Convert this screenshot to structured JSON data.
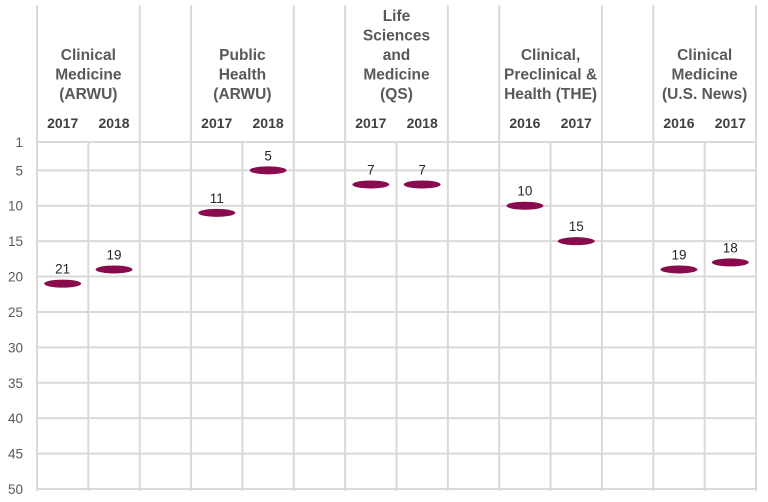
{
  "chart_data": {
    "type": "scatter",
    "marker_color": "#8a0a4e",
    "grid_color": "#d9d9d9",
    "y_axis": {
      "reversed": true,
      "ylim": [
        1,
        50
      ],
      "ticks": [
        1,
        5,
        10,
        15,
        20,
        25,
        30,
        35,
        40,
        45,
        50
      ]
    },
    "groups": [
      {
        "title_lines": [
          "Clinical",
          "Medicine",
          "(ARWU)"
        ],
        "points": [
          {
            "year": "2017",
            "rank": 21
          },
          {
            "year": "2018",
            "rank": 19
          }
        ]
      },
      {
        "title_lines": [
          "Public",
          "Health",
          "(ARWU)"
        ],
        "points": [
          {
            "year": "2017",
            "rank": 11
          },
          {
            "year": "2018",
            "rank": 5
          }
        ]
      },
      {
        "title_lines": [
          "Life",
          "Sciences",
          "and",
          "Medicine",
          "(QS)"
        ],
        "points": [
          {
            "year": "2017",
            "rank": 7
          },
          {
            "year": "2018",
            "rank": 7
          }
        ]
      },
      {
        "title_lines": [
          "Clinical,",
          "Preclinical &",
          "Health (THE)"
        ],
        "points": [
          {
            "year": "2016",
            "rank": 10
          },
          {
            "year": "2017",
            "rank": 15
          }
        ]
      },
      {
        "title_lines": [
          "Clinical",
          "Medicine",
          "(U.S. News)"
        ],
        "points": [
          {
            "year": "2016",
            "rank": 19
          },
          {
            "year": "2017",
            "rank": 18
          }
        ]
      }
    ]
  }
}
